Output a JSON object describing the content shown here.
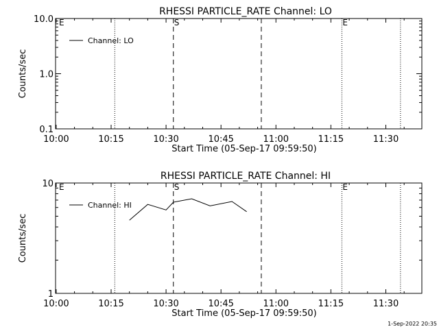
{
  "footer_timestamp": "1-Sep-2022 20:35",
  "chart_data": [
    {
      "type": "line",
      "title": "RHESSI PARTICLE_RATE Channel: LO",
      "xlabel": "Start Time (05-Sep-17 09:59:50)",
      "ylabel": "Counts/sec",
      "x_ticks": [
        "10:00",
        "10:15",
        "10:30",
        "10:45",
        "11:00",
        "11:15",
        "11:30"
      ],
      "y_scale": "log",
      "ylim": [
        0.1,
        10.0
      ],
      "y_ticks": [
        "10.0",
        "1.0",
        "0.1"
      ],
      "legend": [
        "Channel: LO"
      ],
      "legend_position": "top-left",
      "series": [
        {
          "name": "Channel: LO",
          "points": []
        }
      ],
      "markers": [
        {
          "label": "E",
          "time": "10:00",
          "style": "none"
        },
        {
          "label": "",
          "time": "10:16",
          "style": "dotted"
        },
        {
          "label": "S",
          "time": "10:32",
          "style": "dashed"
        },
        {
          "label": "",
          "time": "10:56",
          "style": "dashed"
        },
        {
          "label": "E",
          "time": "11:18",
          "style": "dotted"
        },
        {
          "label": "",
          "time": "11:34",
          "style": "dotted"
        }
      ]
    },
    {
      "type": "line",
      "title": "RHESSI PARTICLE_RATE Channel: HI",
      "xlabel": "Start Time (05-Sep-17 09:59:50)",
      "ylabel": "Counts/sec",
      "x_ticks": [
        "10:00",
        "10:15",
        "10:30",
        "10:45",
        "11:00",
        "11:15",
        "11:30"
      ],
      "y_scale": "log",
      "ylim": [
        1,
        10
      ],
      "y_ticks": [
        "10",
        "1"
      ],
      "legend": [
        "Channel: HI"
      ],
      "legend_position": "top-left",
      "series": [
        {
          "name": "Channel: HI",
          "points": [
            [
              10.2,
              4.6
            ],
            [
              10.25,
              6.4
            ],
            [
              10.3,
              5.7
            ],
            [
              10.32,
              6.7
            ],
            [
              10.37,
              7.2
            ],
            [
              10.42,
              6.2
            ],
            [
              10.48,
              6.8
            ],
            [
              10.52,
              5.5
            ]
          ]
        }
      ],
      "markers": [
        {
          "label": "E",
          "time": "10:00",
          "style": "none"
        },
        {
          "label": "",
          "time": "10:16",
          "style": "dotted"
        },
        {
          "label": "S",
          "time": "10:32",
          "style": "dashed"
        },
        {
          "label": "",
          "time": "10:56",
          "style": "dashed"
        },
        {
          "label": "E",
          "time": "11:18",
          "style": "dotted"
        },
        {
          "label": "",
          "time": "11:34",
          "style": "dotted"
        }
      ]
    }
  ]
}
